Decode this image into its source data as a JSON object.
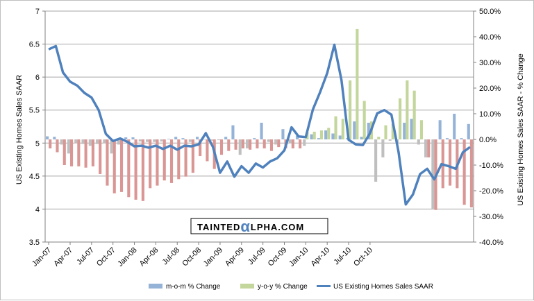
{
  "chart_data": {
    "type": "bar+line",
    "left_axis": {
      "label": "US Existing Homes Sales SAAR",
      "range": [
        3.5,
        7
      ],
      "ticks": [
        "3.5",
        "4",
        "4.5",
        "5",
        "5.5",
        "6",
        "6.5",
        "7"
      ]
    },
    "right_axis": {
      "label": "US Existing Homes Sales SAAR - % Change",
      "range": [
        -40,
        50
      ],
      "ticks": [
        "-40.0%",
        "-30.0%",
        "-20.0%",
        "-10.0%",
        "0.0%",
        "10.0%",
        "20.0%",
        "30.0%",
        "40.0%",
        "50.0%"
      ]
    },
    "x_ticks": [
      "Jan-07",
      "Apr-07",
      "Jul-07",
      "Oct-07",
      "Jan-08",
      "Apr-08",
      "Jul-08",
      "Oct-08",
      "Jan-09",
      "Apr-09",
      "Jul-09",
      "Oct-09",
      "Jan-10",
      "Apr-10",
      "Jul-10",
      "Oct-10"
    ],
    "grid": "horizontal",
    "legend_position": "bottom",
    "watermark": {
      "pre": "TAINTED",
      "alpha": "α",
      "post": "LPHA.COM"
    },
    "series": [
      {
        "name": "m-o-m % Change",
        "kind": "bar",
        "axis": "right",
        "values": [
          1.2,
          1.0,
          -2.0,
          -5.5,
          -1.5,
          -1.8,
          -2.5,
          -1.8,
          -1.5,
          -5.5,
          -2.0,
          0.8,
          0.8,
          -0.8,
          -1.0,
          -1.0,
          -0.8,
          0.2,
          1.0,
          0.5,
          -1.0,
          1.0,
          0.2,
          -0.5,
          -0.3,
          1.0,
          5.5,
          -6.0,
          -3.5,
          0.5,
          6.5,
          -1.0,
          -2.0,
          4.0,
          -1.5,
          1.5,
          -2.5,
          2.0,
          0.5,
          3.5,
          2.3,
          1.5,
          0.5,
          7.0,
          1.0,
          6.5,
          -16.5,
          -7.0,
          -0.5,
          -1.5,
          6.5,
          8.0,
          -2.0,
          -7.0,
          -27.0,
          7.5,
          0.5,
          10.0,
          0.5,
          6.0
        ]
      },
      {
        "name": "y-o-y % Change",
        "kind": "bar",
        "axis": "right",
        "values": [
          -3.5,
          -5.0,
          -10.0,
          -10.5,
          -10.5,
          -11.0,
          -10.5,
          -13.5,
          -18.0,
          -21.0,
          -20.5,
          -22.5,
          -23.5,
          -24.0,
          -19.0,
          -18.0,
          -16.0,
          -17.0,
          -15.5,
          -14.5,
          -13.0,
          -6.5,
          -8.5,
          -11.5,
          -6.0,
          -4.5,
          -4.0,
          -3.5,
          -4.0,
          -3.5,
          -3.5,
          -4.5,
          -3.0,
          -3.5,
          -3.5,
          -3.5,
          3.0,
          3.0,
          3.5,
          4.5,
          9.0,
          8.0,
          23.0,
          43.0,
          15.0,
          7.0,
          1.0,
          5.5,
          6.0,
          16.0,
          23.0,
          19.0,
          7.5,
          -7.0,
          -27.5,
          -19.0,
          -18.0,
          -19.0,
          -25.5,
          -26.5
        ]
      },
      {
        "name": "US Existing Homes Sales SAAR",
        "kind": "line",
        "axis": "left",
        "color": "#4f81bd",
        "values": [
          6.42,
          6.47,
          6.07,
          5.93,
          5.87,
          5.76,
          5.69,
          5.5,
          5.14,
          5.03,
          5.07,
          5.02,
          4.95,
          4.96,
          4.93,
          4.96,
          4.91,
          4.96,
          4.9,
          4.96,
          4.95,
          4.98,
          5.15,
          4.94,
          4.55,
          4.72,
          4.49,
          4.65,
          4.55,
          4.69,
          4.63,
          4.72,
          4.77,
          4.89,
          5.24,
          5.1,
          5.09,
          5.51,
          5.77,
          6.06,
          6.49,
          5.95,
          5.05,
          4.98,
          4.97,
          5.15,
          5.45,
          5.5,
          5.43,
          4.86,
          4.07,
          4.22,
          4.53,
          4.61,
          4.45,
          4.68,
          4.65,
          4.61,
          4.86,
          4.94
        ]
      }
    ]
  }
}
